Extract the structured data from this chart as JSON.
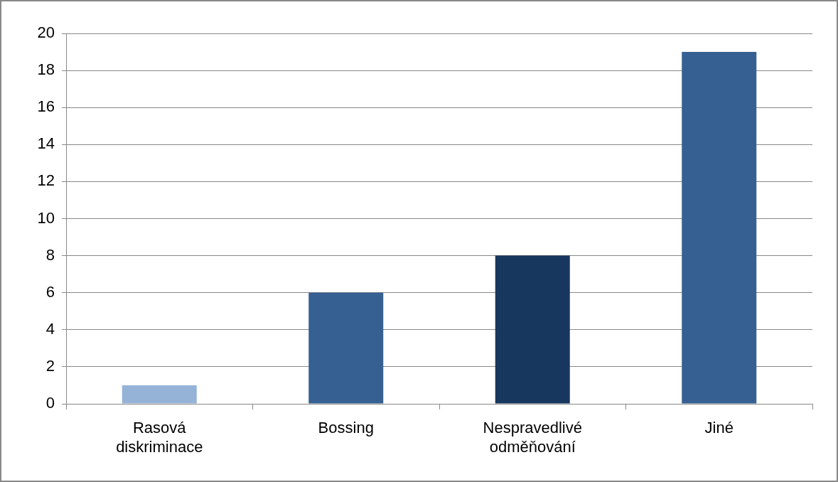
{
  "chart_data": {
    "type": "bar",
    "categories": [
      "Rasová diskriminace",
      "Bossing",
      "Nespravedlivé odměňování",
      "Jiné"
    ],
    "values": [
      1,
      6,
      8,
      19
    ],
    "colors": [
      "#95b3d7",
      "#366092",
      "#17375e",
      "#366092"
    ],
    "ylim": [
      0,
      20
    ],
    "yticks": [
      0,
      2,
      4,
      6,
      8,
      10,
      12,
      14,
      16,
      18,
      20
    ],
    "grid": "y"
  }
}
